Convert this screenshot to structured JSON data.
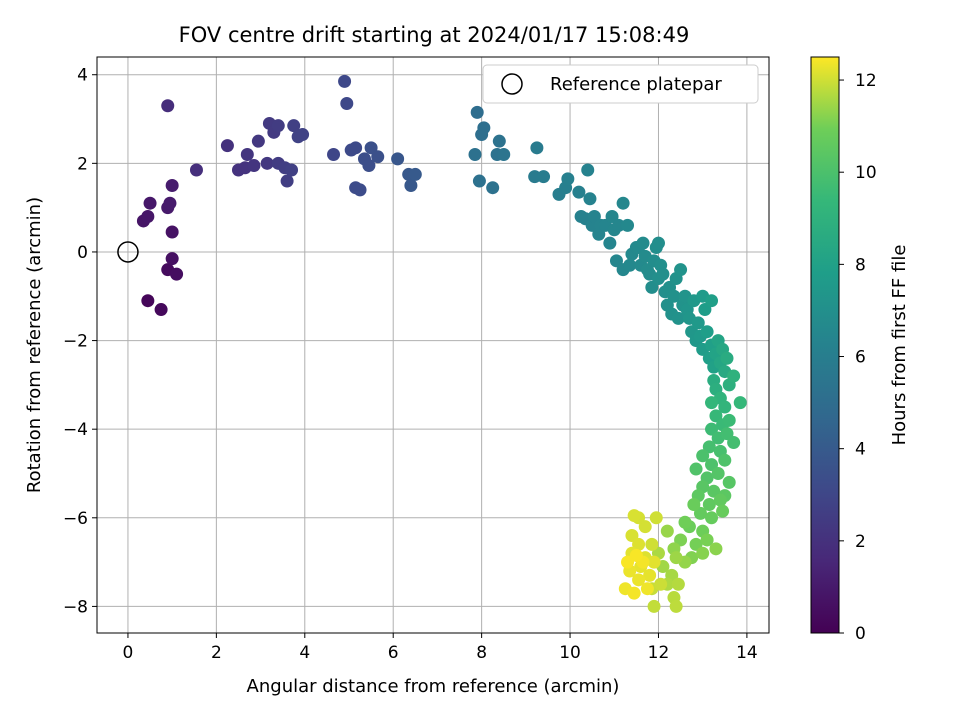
{
  "chart_data": {
    "type": "scatter",
    "title": "FOV centre drift starting at 2024/01/17 15:08:49",
    "xlabel": "Angular distance from reference (arcmin)",
    "ylabel": "Rotation from reference (arcmin)",
    "xlim": [
      -0.7,
      14.5
    ],
    "ylim": [
      -8.6,
      4.4
    ],
    "xticks": [
      0,
      2,
      4,
      6,
      8,
      10,
      12,
      14
    ],
    "yticks": [
      4,
      2,
      0,
      -2,
      -4,
      -6,
      -8
    ],
    "grid": true,
    "legend": {
      "placement": "upper-right",
      "entries": [
        "Reference platepar"
      ]
    },
    "colorbar": {
      "label": "Hours from first FF file",
      "range": [
        0,
        12.5
      ],
      "ticks": [
        0,
        2,
        4,
        6,
        8,
        10,
        12
      ],
      "colormap": "viridis"
    },
    "reference_point": {
      "x": 0,
      "y": 0
    },
    "series": [
      {
        "marker": "filled-circle",
        "color_by": "hours",
        "points": [
          {
            "x": 0.45,
            "y": -1.1,
            "h": 0.2
          },
          {
            "x": 0.75,
            "y": -1.3,
            "h": 0.3
          },
          {
            "x": 0.9,
            "y": -0.4,
            "h": 0.4
          },
          {
            "x": 1.1,
            "y": -0.5,
            "h": 0.5
          },
          {
            "x": 1.0,
            "y": -0.15,
            "h": 0.6
          },
          {
            "x": 1.0,
            "y": 0.45,
            "h": 0.7
          },
          {
            "x": 0.35,
            "y": 0.7,
            "h": 0.8
          },
          {
            "x": 0.45,
            "y": 0.8,
            "h": 0.85
          },
          {
            "x": 0.5,
            "y": 1.1,
            "h": 0.9
          },
          {
            "x": 0.9,
            "y": 1.0,
            "h": 1.0
          },
          {
            "x": 0.95,
            "y": 1.1,
            "h": 1.05
          },
          {
            "x": 1.0,
            "y": 1.5,
            "h": 1.1
          },
          {
            "x": 0.9,
            "y": 3.3,
            "h": 1.8
          },
          {
            "x": 1.55,
            "y": 1.85,
            "h": 1.9
          },
          {
            "x": 2.25,
            "y": 2.4,
            "h": 2.0
          },
          {
            "x": 2.5,
            "y": 1.85,
            "h": 2.1
          },
          {
            "x": 2.65,
            "y": 1.9,
            "h": 2.1
          },
          {
            "x": 2.7,
            "y": 2.2,
            "h": 2.2
          },
          {
            "x": 2.85,
            "y": 1.95,
            "h": 2.2
          },
          {
            "x": 2.95,
            "y": 2.5,
            "h": 2.3
          },
          {
            "x": 3.15,
            "y": 2.0,
            "h": 2.3
          },
          {
            "x": 3.2,
            "y": 2.9,
            "h": 2.4
          },
          {
            "x": 3.3,
            "y": 2.7,
            "h": 2.4
          },
          {
            "x": 3.4,
            "y": 2.85,
            "h": 2.5
          },
          {
            "x": 3.4,
            "y": 2.0,
            "h": 2.5
          },
          {
            "x": 3.55,
            "y": 1.9,
            "h": 2.6
          },
          {
            "x": 3.6,
            "y": 1.6,
            "h": 2.6
          },
          {
            "x": 3.7,
            "y": 1.85,
            "h": 2.7
          },
          {
            "x": 3.75,
            "y": 2.85,
            "h": 2.7
          },
          {
            "x": 3.85,
            "y": 2.6,
            "h": 2.8
          },
          {
            "x": 3.95,
            "y": 2.65,
            "h": 2.8
          },
          {
            "x": 4.65,
            "y": 2.2,
            "h": 3.0
          },
          {
            "x": 4.9,
            "y": 3.85,
            "h": 3.1
          },
          {
            "x": 4.95,
            "y": 3.35,
            "h": 3.1
          },
          {
            "x": 5.05,
            "y": 2.3,
            "h": 3.2
          },
          {
            "x": 5.15,
            "y": 2.35,
            "h": 3.2
          },
          {
            "x": 5.15,
            "y": 1.45,
            "h": 3.3
          },
          {
            "x": 5.25,
            "y": 1.4,
            "h": 3.3
          },
          {
            "x": 5.35,
            "y": 2.1,
            "h": 3.4
          },
          {
            "x": 5.45,
            "y": 1.95,
            "h": 3.4
          },
          {
            "x": 5.5,
            "y": 2.35,
            "h": 3.5
          },
          {
            "x": 5.65,
            "y": 2.15,
            "h": 3.5
          },
          {
            "x": 6.1,
            "y": 2.1,
            "h": 3.8
          },
          {
            "x": 6.35,
            "y": 1.75,
            "h": 3.9
          },
          {
            "x": 6.4,
            "y": 1.5,
            "h": 3.9
          },
          {
            "x": 6.5,
            "y": 1.75,
            "h": 4.0
          },
          {
            "x": 7.9,
            "y": 3.15,
            "h": 5.0
          },
          {
            "x": 8.0,
            "y": 2.65,
            "h": 5.1
          },
          {
            "x": 8.05,
            "y": 2.8,
            "h": 5.1
          },
          {
            "x": 7.85,
            "y": 2.2,
            "h": 5.2
          },
          {
            "x": 7.95,
            "y": 1.6,
            "h": 5.2
          },
          {
            "x": 8.25,
            "y": 1.45,
            "h": 5.3
          },
          {
            "x": 8.35,
            "y": 2.2,
            "h": 5.3
          },
          {
            "x": 8.4,
            "y": 2.5,
            "h": 5.3
          },
          {
            "x": 8.5,
            "y": 2.2,
            "h": 5.4
          },
          {
            "x": 9.25,
            "y": 2.35,
            "h": 5.8
          },
          {
            "x": 9.2,
            "y": 1.7,
            "h": 5.8
          },
          {
            "x": 9.4,
            "y": 1.7,
            "h": 5.9
          },
          {
            "x": 9.75,
            "y": 1.3,
            "h": 6.0
          },
          {
            "x": 9.9,
            "y": 1.45,
            "h": 6.05
          },
          {
            "x": 9.95,
            "y": 1.65,
            "h": 6.1
          },
          {
            "x": 10.2,
            "y": 1.35,
            "h": 6.15
          },
          {
            "x": 10.25,
            "y": 0.8,
            "h": 6.2
          },
          {
            "x": 10.35,
            "y": 0.75,
            "h": 6.2
          },
          {
            "x": 10.4,
            "y": 1.85,
            "h": 6.25
          },
          {
            "x": 10.45,
            "y": 1.2,
            "h": 6.25
          },
          {
            "x": 10.5,
            "y": 0.6,
            "h": 6.3
          },
          {
            "x": 10.55,
            "y": 0.8,
            "h": 6.3
          },
          {
            "x": 10.65,
            "y": 0.4,
            "h": 6.35
          },
          {
            "x": 10.7,
            "y": 0.6,
            "h": 6.35
          },
          {
            "x": 10.8,
            "y": 0.6,
            "h": 6.4
          },
          {
            "x": 10.9,
            "y": 0.2,
            "h": 6.4
          },
          {
            "x": 10.95,
            "y": 0.8,
            "h": 6.45
          },
          {
            "x": 11.0,
            "y": 0.5,
            "h": 6.45
          },
          {
            "x": 11.05,
            "y": -0.2,
            "h": 6.5
          },
          {
            "x": 11.1,
            "y": 0.6,
            "h": 6.5
          },
          {
            "x": 11.2,
            "y": 1.1,
            "h": 6.55
          },
          {
            "x": 11.2,
            "y": -0.4,
            "h": 6.55
          },
          {
            "x": 11.3,
            "y": 0.6,
            "h": 6.6
          },
          {
            "x": 11.35,
            "y": -0.3,
            "h": 6.6
          },
          {
            "x": 11.4,
            "y": -0.05,
            "h": 6.65
          },
          {
            "x": 11.5,
            "y": 0.1,
            "h": 6.65
          },
          {
            "x": 11.55,
            "y": 0.1,
            "h": 6.7
          },
          {
            "x": 11.6,
            "y": -0.3,
            "h": 6.7
          },
          {
            "x": 11.65,
            "y": 0.2,
            "h": 6.75
          },
          {
            "x": 11.7,
            "y": -0.1,
            "h": 6.75
          },
          {
            "x": 11.75,
            "y": -0.4,
            "h": 6.8
          },
          {
            "x": 11.8,
            "y": -0.5,
            "h": 6.8
          },
          {
            "x": 11.85,
            "y": -0.8,
            "h": 6.85
          },
          {
            "x": 11.9,
            "y": -0.2,
            "h": 6.85
          },
          {
            "x": 11.95,
            "y": 0.1,
            "h": 6.9
          },
          {
            "x": 12.0,
            "y": 0.2,
            "h": 6.9
          },
          {
            "x": 12.0,
            "y": -0.6,
            "h": 6.95
          },
          {
            "x": 12.05,
            "y": -0.3,
            "h": 6.95
          },
          {
            "x": 12.1,
            "y": -0.5,
            "h": 7.0
          },
          {
            "x": 12.15,
            "y": -0.9,
            "h": 7.0
          },
          {
            "x": 12.2,
            "y": -1.2,
            "h": 7.05
          },
          {
            "x": 12.25,
            "y": -0.8,
            "h": 7.05
          },
          {
            "x": 12.3,
            "y": -1.4,
            "h": 7.1
          },
          {
            "x": 12.35,
            "y": -1.0,
            "h": 7.1
          },
          {
            "x": 12.4,
            "y": -0.6,
            "h": 7.15
          },
          {
            "x": 12.45,
            "y": -1.5,
            "h": 7.15
          },
          {
            "x": 12.5,
            "y": -0.4,
            "h": 7.2
          },
          {
            "x": 12.55,
            "y": -1.2,
            "h": 7.2
          },
          {
            "x": 12.6,
            "y": -1.0,
            "h": 7.25
          },
          {
            "x": 12.65,
            "y": -1.3,
            "h": 7.3
          },
          {
            "x": 12.7,
            "y": -1.5,
            "h": 7.35
          },
          {
            "x": 12.75,
            "y": -1.8,
            "h": 7.4
          },
          {
            "x": 12.8,
            "y": -1.1,
            "h": 7.45
          },
          {
            "x": 12.85,
            "y": -2.0,
            "h": 7.5
          },
          {
            "x": 12.9,
            "y": -1.6,
            "h": 7.55
          },
          {
            "x": 12.95,
            "y": -1.9,
            "h": 7.6
          },
          {
            "x": 13.0,
            "y": -1.0,
            "h": 7.65
          },
          {
            "x": 13.0,
            "y": -2.2,
            "h": 7.7
          },
          {
            "x": 13.05,
            "y": -1.3,
            "h": 7.75
          },
          {
            "x": 13.1,
            "y": -1.8,
            "h": 7.8
          },
          {
            "x": 13.15,
            "y": -2.4,
            "h": 7.85
          },
          {
            "x": 13.2,
            "y": -1.1,
            "h": 7.9
          },
          {
            "x": 13.2,
            "y": -2.1,
            "h": 7.95
          },
          {
            "x": 13.25,
            "y": -2.6,
            "h": 8.0
          },
          {
            "x": 13.3,
            "y": -2.3,
            "h": 8.1
          },
          {
            "x": 13.35,
            "y": -2.0,
            "h": 8.2
          },
          {
            "x": 13.4,
            "y": -2.5,
            "h": 8.3
          },
          {
            "x": 13.45,
            "y": -2.2,
            "h": 8.4
          },
          {
            "x": 13.5,
            "y": -2.7,
            "h": 8.5
          },
          {
            "x": 13.55,
            "y": -2.4,
            "h": 8.6
          },
          {
            "x": 13.25,
            "y": -2.9,
            "h": 8.7
          },
          {
            "x": 13.3,
            "y": -3.1,
            "h": 8.8
          },
          {
            "x": 13.6,
            "y": -3.0,
            "h": 8.9
          },
          {
            "x": 13.7,
            "y": -2.8,
            "h": 9.0
          },
          {
            "x": 13.4,
            "y": -3.3,
            "h": 9.1
          },
          {
            "x": 13.5,
            "y": -3.5,
            "h": 9.2
          },
          {
            "x": 13.2,
            "y": -3.4,
            "h": 9.3
          },
          {
            "x": 13.85,
            "y": -3.4,
            "h": 9.35
          },
          {
            "x": 13.3,
            "y": -3.7,
            "h": 9.4
          },
          {
            "x": 13.45,
            "y": -3.9,
            "h": 9.5
          },
          {
            "x": 13.6,
            "y": -3.8,
            "h": 9.55
          },
          {
            "x": 13.2,
            "y": -4.0,
            "h": 9.6
          },
          {
            "x": 13.35,
            "y": -4.2,
            "h": 9.7
          },
          {
            "x": 13.55,
            "y": -4.1,
            "h": 9.75
          },
          {
            "x": 13.7,
            "y": -4.3,
            "h": 9.8
          },
          {
            "x": 13.15,
            "y": -4.4,
            "h": 9.85
          },
          {
            "x": 13.4,
            "y": -4.5,
            "h": 9.9
          },
          {
            "x": 13.0,
            "y": -4.6,
            "h": 10.0
          },
          {
            "x": 13.2,
            "y": -4.8,
            "h": 10.05
          },
          {
            "x": 13.5,
            "y": -4.7,
            "h": 10.1
          },
          {
            "x": 12.85,
            "y": -4.9,
            "h": 10.15
          },
          {
            "x": 13.1,
            "y": -5.1,
            "h": 10.2
          },
          {
            "x": 13.35,
            "y": -5.0,
            "h": 10.25
          },
          {
            "x": 13.6,
            "y": -5.2,
            "h": 10.3
          },
          {
            "x": 13.0,
            "y": -5.3,
            "h": 10.35
          },
          {
            "x": 13.25,
            "y": -5.4,
            "h": 10.4
          },
          {
            "x": 13.5,
            "y": -5.5,
            "h": 10.45
          },
          {
            "x": 12.9,
            "y": -5.5,
            "h": 10.5
          },
          {
            "x": 13.15,
            "y": -5.7,
            "h": 10.55
          },
          {
            "x": 13.4,
            "y": -5.6,
            "h": 10.6
          },
          {
            "x": 12.95,
            "y": -5.9,
            "h": 10.65
          },
          {
            "x": 13.2,
            "y": -6.0,
            "h": 10.7
          },
          {
            "x": 13.45,
            "y": -5.85,
            "h": 10.75
          },
          {
            "x": 12.8,
            "y": -5.7,
            "h": 10.8
          },
          {
            "x": 12.7,
            "y": -6.2,
            "h": 10.85
          },
          {
            "x": 13.0,
            "y": -6.3,
            "h": 10.9
          },
          {
            "x": 12.6,
            "y": -6.1,
            "h": 10.95
          },
          {
            "x": 12.85,
            "y": -6.6,
            "h": 11.0
          },
          {
            "x": 13.1,
            "y": -6.5,
            "h": 11.05
          },
          {
            "x": 12.5,
            "y": -6.5,
            "h": 11.1
          },
          {
            "x": 12.75,
            "y": -6.9,
            "h": 11.15
          },
          {
            "x": 13.0,
            "y": -6.8,
            "h": 11.2
          },
          {
            "x": 13.3,
            "y": -6.7,
            "h": 11.25
          },
          {
            "x": 12.35,
            "y": -6.7,
            "h": 11.3
          },
          {
            "x": 12.6,
            "y": -7.0,
            "h": 11.35
          },
          {
            "x": 12.2,
            "y": -6.3,
            "h": 11.4
          },
          {
            "x": 12.4,
            "y": -6.9,
            "h": 11.45
          },
          {
            "x": 12.1,
            "y": -7.1,
            "h": 11.5
          },
          {
            "x": 12.3,
            "y": -7.3,
            "h": 11.55
          },
          {
            "x": 12.0,
            "y": -6.8,
            "h": 11.6
          },
          {
            "x": 12.2,
            "y": -7.5,
            "h": 11.65
          },
          {
            "x": 12.45,
            "y": -7.5,
            "h": 11.7
          },
          {
            "x": 12.35,
            "y": -7.8,
            "h": 11.75
          },
          {
            "x": 12.4,
            "y": -8.0,
            "h": 11.8
          },
          {
            "x": 11.9,
            "y": -8.0,
            "h": 11.85
          },
          {
            "x": 11.85,
            "y": -7.6,
            "h": 11.9
          },
          {
            "x": 12.05,
            "y": -7.5,
            "h": 11.95
          },
          {
            "x": 11.95,
            "y": -6.0,
            "h": 12.0
          },
          {
            "x": 11.85,
            "y": -6.6,
            "h": 12.0
          },
          {
            "x": 11.7,
            "y": -6.2,
            "h": 12.05
          },
          {
            "x": 11.55,
            "y": -6.0,
            "h": 12.05
          },
          {
            "x": 11.45,
            "y": -5.95,
            "h": 12.1
          },
          {
            "x": 11.4,
            "y": -6.4,
            "h": 12.1
          },
          {
            "x": 11.55,
            "y": -6.6,
            "h": 12.15
          },
          {
            "x": 11.7,
            "y": -6.9,
            "h": 12.15
          },
          {
            "x": 11.9,
            "y": -7.0,
            "h": 12.2
          },
          {
            "x": 11.4,
            "y": -6.8,
            "h": 12.2
          },
          {
            "x": 11.6,
            "y": -7.1,
            "h": 12.25
          },
          {
            "x": 11.8,
            "y": -7.3,
            "h": 12.25
          },
          {
            "x": 11.35,
            "y": -7.2,
            "h": 12.3
          },
          {
            "x": 11.55,
            "y": -7.4,
            "h": 12.3
          },
          {
            "x": 11.75,
            "y": -7.6,
            "h": 12.35
          },
          {
            "x": 11.25,
            "y": -7.6,
            "h": 12.35
          },
          {
            "x": 11.45,
            "y": -7.7,
            "h": 12.4
          },
          {
            "x": 11.65,
            "y": -7.0,
            "h": 12.4
          },
          {
            "x": 11.5,
            "y": -6.85,
            "h": 12.45
          },
          {
            "x": 11.3,
            "y": -7.0,
            "h": 12.45
          }
        ]
      }
    ]
  }
}
